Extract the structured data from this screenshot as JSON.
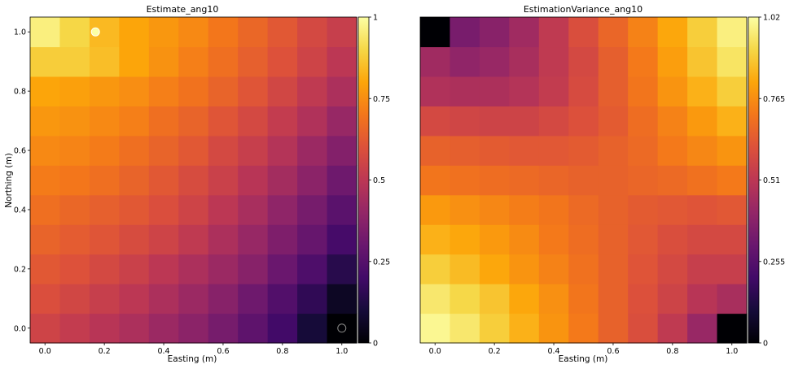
{
  "chart_data": [
    {
      "type": "heatmap",
      "title": "Estimate_ang10",
      "xlabel": "Easting (m)",
      "ylabel": "Northing (m)",
      "x_ticks": [
        "0.0",
        "0.2",
        "0.4",
        "0.6",
        "0.8",
        "1.0"
      ],
      "y_ticks": [
        "0.0",
        "0.2",
        "0.4",
        "0.6",
        "0.8",
        "1.0"
      ],
      "xlim": [
        -0.05,
        1.05
      ],
      "ylim": [
        -0.05,
        1.05
      ],
      "x": [
        0.0,
        0.1,
        0.2,
        0.3,
        0.4,
        0.5,
        0.6,
        0.7,
        0.8,
        0.9,
        1.0
      ],
      "y": [
        0.0,
        0.1,
        0.2,
        0.3,
        0.4,
        0.5,
        0.6,
        0.7,
        0.8,
        0.9,
        1.0
      ],
      "colormap": "inferno",
      "colorbar": {
        "min": 0,
        "max": 1,
        "ticks": [
          "0",
          "0.25",
          "0.5",
          "0.75",
          "1"
        ]
      },
      "values": [
        [
          0.55,
          0.52,
          0.49,
          0.46,
          0.42,
          0.38,
          0.33,
          0.27,
          0.2,
          0.1,
          0.0
        ],
        [
          0.59,
          0.56,
          0.53,
          0.5,
          0.46,
          0.42,
          0.37,
          0.31,
          0.24,
          0.16,
          0.06
        ],
        [
          0.62,
          0.6,
          0.57,
          0.54,
          0.5,
          0.46,
          0.42,
          0.37,
          0.3,
          0.23,
          0.14
        ],
        [
          0.65,
          0.63,
          0.61,
          0.58,
          0.55,
          0.51,
          0.46,
          0.41,
          0.35,
          0.29,
          0.21
        ],
        [
          0.68,
          0.66,
          0.64,
          0.62,
          0.59,
          0.55,
          0.5,
          0.45,
          0.39,
          0.33,
          0.26
        ],
        [
          0.71,
          0.7,
          0.68,
          0.65,
          0.62,
          0.58,
          0.54,
          0.49,
          0.44,
          0.38,
          0.31
        ],
        [
          0.74,
          0.73,
          0.71,
          0.68,
          0.65,
          0.62,
          0.57,
          0.53,
          0.48,
          0.42,
          0.36
        ],
        [
          0.77,
          0.76,
          0.74,
          0.72,
          0.68,
          0.65,
          0.61,
          0.57,
          0.52,
          0.47,
          0.41
        ],
        [
          0.8,
          0.79,
          0.77,
          0.75,
          0.72,
          0.69,
          0.65,
          0.61,
          0.56,
          0.51,
          0.46
        ],
        [
          0.88,
          0.88,
          0.85,
          0.8,
          0.76,
          0.72,
          0.68,
          0.64,
          0.6,
          0.55,
          0.5
        ],
        [
          0.96,
          0.9,
          0.84,
          0.8,
          0.77,
          0.74,
          0.7,
          0.66,
          0.62,
          0.57,
          0.53
        ]
      ],
      "markers": [
        {
          "x": 0.17,
          "y": 1.0,
          "value": 1.0
        },
        {
          "x": 1.0,
          "y": 0.0,
          "value": 0.0
        }
      ]
    },
    {
      "type": "heatmap",
      "title": "EstimationVariance_ang10",
      "xlabel": "Easting (m)",
      "ylabel": "",
      "x_ticks": [
        "0.0",
        "0.2",
        "0.4",
        "0.6",
        "0.8",
        "1.0"
      ],
      "y_ticks": [],
      "xlim": [
        -0.05,
        1.05
      ],
      "ylim": [
        -0.05,
        1.05
      ],
      "x": [
        0.0,
        0.1,
        0.2,
        0.3,
        0.4,
        0.5,
        0.6,
        0.7,
        0.8,
        0.9,
        1.0
      ],
      "y": [
        0.0,
        0.1,
        0.2,
        0.3,
        0.4,
        0.5,
        0.6,
        0.7,
        0.8,
        0.9,
        1.0
      ],
      "colormap": "inferno",
      "colorbar": {
        "min": 0,
        "max": 1.02,
        "ticks": [
          "0",
          "0.255",
          "0.51",
          "0.765",
          "1.02"
        ]
      },
      "values": [
        [
          1.0,
          0.96,
          0.9,
          0.84,
          0.78,
          0.72,
          0.66,
          0.6,
          0.52,
          0.42,
          0.0
        ],
        [
          0.96,
          0.92,
          0.88,
          0.82,
          0.77,
          0.71,
          0.66,
          0.61,
          0.56,
          0.5,
          0.46
        ],
        [
          0.9,
          0.86,
          0.82,
          0.78,
          0.74,
          0.7,
          0.66,
          0.62,
          0.58,
          0.54,
          0.54
        ],
        [
          0.84,
          0.82,
          0.79,
          0.76,
          0.72,
          0.69,
          0.66,
          0.63,
          0.6,
          0.58,
          0.58
        ],
        [
          0.79,
          0.77,
          0.75,
          0.73,
          0.71,
          0.68,
          0.66,
          0.64,
          0.63,
          0.62,
          0.63
        ],
        [
          0.71,
          0.7,
          0.69,
          0.68,
          0.67,
          0.66,
          0.66,
          0.67,
          0.68,
          0.7,
          0.72
        ],
        [
          0.66,
          0.65,
          0.64,
          0.63,
          0.63,
          0.64,
          0.66,
          0.68,
          0.72,
          0.75,
          0.78
        ],
        [
          0.58,
          0.57,
          0.56,
          0.56,
          0.58,
          0.61,
          0.64,
          0.69,
          0.74,
          0.79,
          0.84
        ],
        [
          0.48,
          0.47,
          0.47,
          0.49,
          0.53,
          0.59,
          0.65,
          0.71,
          0.78,
          0.84,
          0.9
        ],
        [
          0.44,
          0.4,
          0.42,
          0.46,
          0.52,
          0.58,
          0.65,
          0.72,
          0.8,
          0.88,
          0.95
        ],
        [
          0.0,
          0.34,
          0.38,
          0.44,
          0.52,
          0.6,
          0.67,
          0.74,
          0.82,
          0.9,
          0.98
        ]
      ]
    }
  ]
}
